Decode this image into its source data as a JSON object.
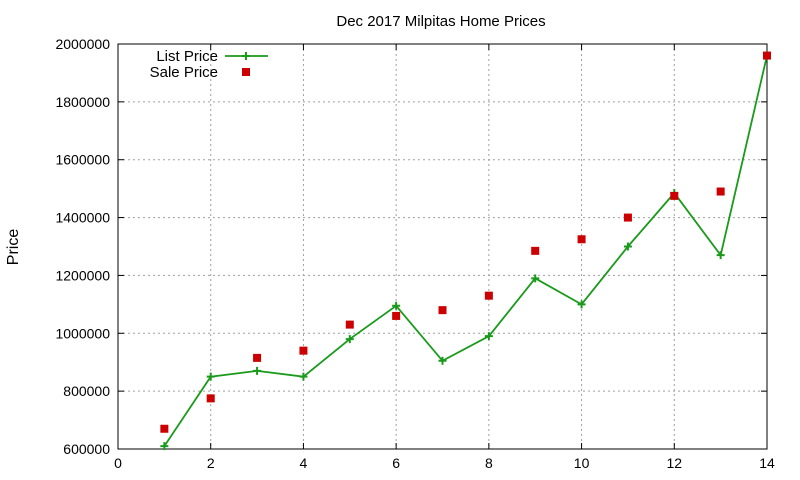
{
  "chart_data": {
    "type": "line",
    "title": "Dec 2017 Milpitas Home Prices",
    "xlabel": "",
    "ylabel": "Price",
    "xlim": [
      0,
      14
    ],
    "ylim": [
      600000,
      2000000
    ],
    "xticks": [
      0,
      2,
      4,
      6,
      8,
      10,
      12,
      14
    ],
    "yticks": [
      600000,
      800000,
      1000000,
      1200000,
      1400000,
      1600000,
      1800000,
      2000000
    ],
    "grid": true,
    "legend_position": "top-left",
    "series": [
      {
        "name": "List Price",
        "style": "line-with-plus-markers",
        "color": "#1a9a1a",
        "x": [
          1,
          2,
          3,
          4,
          5,
          6,
          7,
          8,
          9,
          10,
          11,
          12,
          13,
          14
        ],
        "values": [
          610000,
          850000,
          870000,
          850000,
          980000,
          1095000,
          905000,
          990000,
          1190000,
          1100000,
          1300000,
          1485000,
          1270000,
          1960000
        ]
      },
      {
        "name": "Sale Price",
        "style": "square-markers",
        "color": "#cc0000",
        "x": [
          1,
          2,
          3,
          4,
          5,
          6,
          7,
          8,
          9,
          10,
          11,
          12,
          13,
          14
        ],
        "values": [
          670000,
          775000,
          915000,
          940000,
          1030000,
          1060000,
          1080000,
          1130000,
          1285000,
          1325000,
          1400000,
          1475000,
          1490000,
          1960000
        ]
      }
    ]
  }
}
